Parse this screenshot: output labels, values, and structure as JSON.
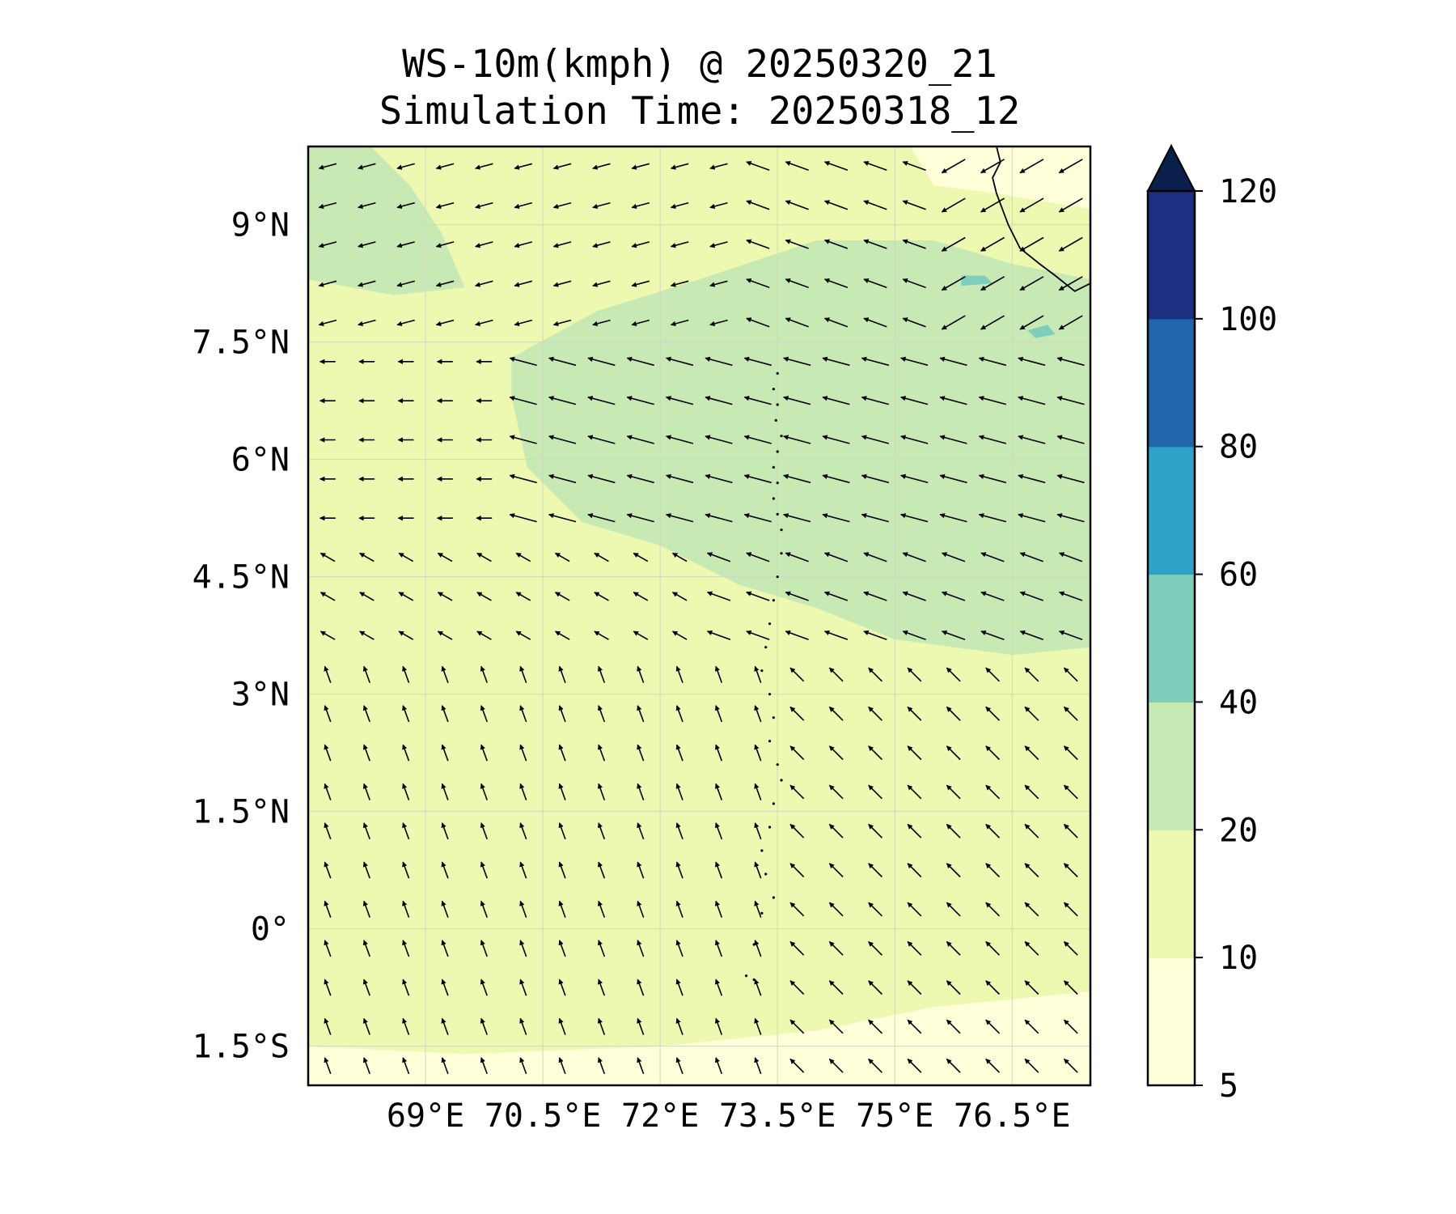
{
  "figure": {
    "title_line1": "WS-10m(kmph) @ 20250320_21",
    "title_line2": "Simulation Time: 20250318_12"
  },
  "map": {
    "lon_range": [
      67.5,
      77.5
    ],
    "lat_range": [
      -2.0,
      10.0
    ],
    "lon_ticks": [
      {
        "value": 69.0,
        "label": "69°E"
      },
      {
        "value": 70.5,
        "label": "70.5°E"
      },
      {
        "value": 72.0,
        "label": "72°E"
      },
      {
        "value": 73.5,
        "label": "73.5°E"
      },
      {
        "value": 75.0,
        "label": "75°E"
      },
      {
        "value": 76.5,
        "label": "76.5°E"
      }
    ],
    "lat_ticks": [
      {
        "value": 9.0,
        "label": "9°N"
      },
      {
        "value": 7.5,
        "label": "7.5°N"
      },
      {
        "value": 6.0,
        "label": "6°N"
      },
      {
        "value": 4.5,
        "label": "4.5°N"
      },
      {
        "value": 3.0,
        "label": "3°N"
      },
      {
        "value": 1.5,
        "label": "1.5°N"
      },
      {
        "value": 0.0,
        "label": "0°"
      },
      {
        "value": -1.5,
        "label": "1.5°S"
      }
    ],
    "gridlines": true,
    "background_color": "#edf8b1",
    "coastline_color": "#000000"
  },
  "colorbar": {
    "levels": [
      5,
      10,
      20,
      40,
      60,
      80,
      100,
      120
    ],
    "labels": [
      "5",
      "10",
      "20",
      "40",
      "60",
      "80",
      "100",
      "120"
    ],
    "colors": [
      "#ffffd9",
      "#edf8b1",
      "#c7e9b4",
      "#7fcdbb",
      "#2fa3c7",
      "#2166ac",
      "#1d2f80"
    ],
    "extend_color": "#0b1f4d",
    "extend": "max"
  },
  "chart_data": {
    "type": "heatmap",
    "title": "WS-10m(kmph) @ 20250320_21",
    "subtitle": "Simulation Time: 20250318_12",
    "xlim": [
      67.5,
      77.5
    ],
    "ylim": [
      -2.0,
      10.0
    ],
    "wind_field": {
      "lon_start": 67.75,
      "lon_step": 0.5,
      "ncols": 20,
      "lat_start": 9.75,
      "lat_step": -0.5,
      "nrows": 25,
      "regions": [
        {
          "lat_min": 7.6,
          "lat_max": 10.0,
          "lon_min": 67.5,
          "lon_max": 73.0,
          "dir_deg": 195,
          "speed_kmph": 15
        },
        {
          "lat_min": 7.6,
          "lat_max": 10.0,
          "lon_min": 73.0,
          "lon_max": 75.5,
          "dir_deg": 160,
          "speed_kmph": 22
        },
        {
          "lat_min": 7.6,
          "lat_max": 10.0,
          "lon_min": 75.5,
          "lon_max": 77.5,
          "dir_deg": 210,
          "speed_kmph": 25
        },
        {
          "lat_min": 5.0,
          "lat_max": 7.6,
          "lon_min": 67.5,
          "lon_max": 70.0,
          "dir_deg": 180,
          "speed_kmph": 12
        },
        {
          "lat_min": 5.0,
          "lat_max": 7.6,
          "lon_min": 70.0,
          "lon_max": 77.5,
          "dir_deg": 165,
          "speed_kmph": 26
        },
        {
          "lat_min": 3.5,
          "lat_max": 5.0,
          "lon_min": 67.5,
          "lon_max": 72.5,
          "dir_deg": 150,
          "speed_kmph": 13
        },
        {
          "lat_min": 3.5,
          "lat_max": 5.0,
          "lon_min": 72.5,
          "lon_max": 77.5,
          "dir_deg": 160,
          "speed_kmph": 22
        },
        {
          "lat_min": -2.0,
          "lat_max": 3.5,
          "lon_min": 67.5,
          "lon_max": 73.5,
          "dir_deg": 110,
          "speed_kmph": 14
        },
        {
          "lat_min": -2.0,
          "lat_max": 3.5,
          "lon_min": 73.5,
          "lon_max": 77.5,
          "dir_deg": 135,
          "speed_kmph": 16
        }
      ]
    },
    "speed_zones": [
      {
        "band": "20-40",
        "polygon": [
          [
            70.1,
            7.3
          ],
          [
            71.2,
            7.9
          ],
          [
            72.5,
            8.3
          ],
          [
            74.0,
            8.8
          ],
          [
            75.5,
            8.8
          ],
          [
            76.5,
            8.5
          ],
          [
            77.5,
            8.3
          ],
          [
            77.5,
            3.6
          ],
          [
            76.5,
            3.5
          ],
          [
            75.0,
            3.7
          ],
          [
            74.0,
            4.1
          ],
          [
            73.0,
            4.4
          ],
          [
            72.0,
            4.9
          ],
          [
            71.0,
            5.2
          ],
          [
            70.3,
            5.9
          ],
          [
            70.1,
            6.8
          ]
        ]
      },
      {
        "band": "20-40",
        "polygon": [
          [
            67.5,
            10.0
          ],
          [
            68.3,
            10.0
          ],
          [
            68.8,
            9.5
          ],
          [
            69.2,
            8.9
          ],
          [
            69.5,
            8.2
          ],
          [
            68.6,
            8.1
          ],
          [
            67.5,
            8.3
          ]
        ]
      },
      {
        "band": "5-10",
        "polygon": [
          [
            75.2,
            10.0
          ],
          [
            77.5,
            10.0
          ],
          [
            77.5,
            9.2
          ],
          [
            76.3,
            9.4
          ],
          [
            75.5,
            9.5
          ]
        ]
      },
      {
        "band": "5-10",
        "polygon": [
          [
            67.5,
            -1.5
          ],
          [
            69.5,
            -1.6
          ],
          [
            72.0,
            -1.5
          ],
          [
            74.0,
            -1.3
          ],
          [
            75.5,
            -1.0
          ],
          [
            77.5,
            -0.8
          ],
          [
            77.5,
            -2.0
          ],
          [
            67.5,
            -2.0
          ]
        ]
      },
      {
        "band": "40-60",
        "polygon": [
          [
            75.85,
            8.35
          ],
          [
            76.15,
            8.35
          ],
          [
            76.25,
            8.25
          ],
          [
            75.85,
            8.22
          ]
        ]
      },
      {
        "band": "40-60",
        "polygon": [
          [
            76.7,
            7.65
          ],
          [
            76.95,
            7.72
          ],
          [
            77.05,
            7.6
          ],
          [
            76.8,
            7.55
          ]
        ]
      }
    ],
    "coastline": [
      [
        76.3,
        10.0
      ],
      [
        76.35,
        9.8
      ],
      [
        76.25,
        9.6
      ],
      [
        76.3,
        9.4
      ],
      [
        76.45,
        9.0
      ],
      [
        76.6,
        8.7
      ],
      [
        76.85,
        8.5
      ],
      [
        77.05,
        8.35
      ],
      [
        77.3,
        8.15
      ],
      [
        77.5,
        8.25
      ]
    ],
    "islands": [
      [
        73.5,
        7.1
      ],
      [
        73.45,
        6.9
      ],
      [
        73.5,
        6.7
      ],
      [
        73.48,
        6.5
      ],
      [
        73.55,
        6.3
      ],
      [
        73.5,
        6.1
      ],
      [
        73.45,
        5.9
      ],
      [
        73.5,
        5.7
      ],
      [
        73.45,
        5.5
      ],
      [
        73.5,
        5.3
      ],
      [
        73.55,
        5.1
      ],
      [
        73.55,
        4.8
      ],
      [
        73.5,
        4.5
      ],
      [
        73.45,
        4.2
      ],
      [
        73.4,
        3.9
      ],
      [
        73.35,
        3.6
      ],
      [
        73.3,
        3.3
      ],
      [
        73.4,
        3.0
      ],
      [
        73.45,
        2.7
      ],
      [
        73.4,
        2.4
      ],
      [
        73.5,
        2.1
      ],
      [
        73.55,
        1.9
      ],
      [
        73.45,
        1.6
      ],
      [
        73.4,
        1.3
      ],
      [
        73.3,
        1.0
      ],
      [
        73.35,
        0.7
      ],
      [
        73.45,
        0.4
      ],
      [
        73.3,
        0.2
      ],
      [
        73.2,
        -0.2
      ],
      [
        73.1,
        -0.6
      ],
      [
        73.2,
        -0.65
      ]
    ]
  }
}
